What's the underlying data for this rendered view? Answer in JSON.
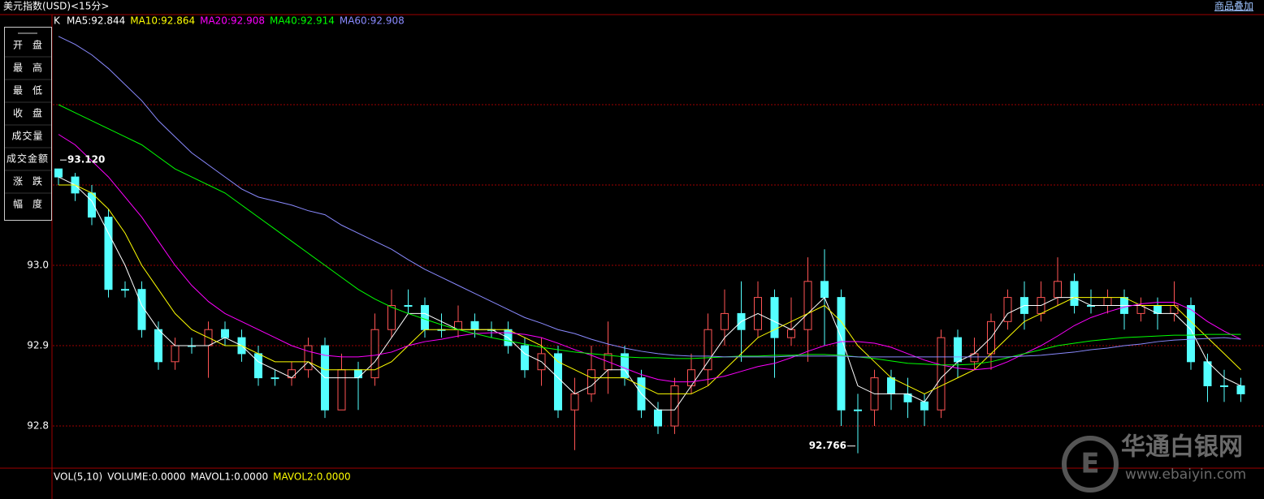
{
  "header": {
    "title": "美元指数(USD)<15分>",
    "overlay_button": "商品叠加"
  },
  "sidebar": [
    "开盘",
    "最高",
    "最低",
    "收盘",
    "成交量",
    "成交金额",
    "涨跌",
    "幅度"
  ],
  "chart_data": {
    "type": "candlestick",
    "label": "K",
    "open": [
      93.12,
      93.11,
      93.09,
      93.06,
      92.97,
      92.97,
      92.92,
      92.88,
      92.9,
      92.9,
      92.92,
      92.91,
      92.89,
      92.86,
      92.86,
      92.87,
      92.9,
      92.82,
      92.87,
      92.86,
      92.92,
      92.95,
      92.95,
      92.92,
      92.92,
      92.93,
      92.92,
      92.92,
      92.9,
      92.87,
      92.89,
      92.82,
      92.84,
      92.87,
      92.89,
      92.86,
      92.82,
      92.8,
      92.85,
      92.87,
      92.92,
      92.94,
      92.92,
      92.96,
      92.91,
      92.92,
      92.98,
      92.96,
      92.82,
      92.82,
      92.86,
      92.84,
      92.83,
      92.82,
      92.91,
      92.88,
      92.89,
      92.93,
      92.96,
      92.94,
      92.96,
      92.98,
      92.95,
      92.95,
      92.96,
      92.94,
      92.95,
      92.94,
      92.95,
      92.88,
      92.85,
      92.85
    ],
    "high": [
      93.12,
      93.115,
      93.1,
      93.07,
      92.98,
      92.98,
      92.93,
      92.91,
      92.91,
      92.93,
      92.93,
      92.92,
      92.9,
      92.87,
      92.88,
      92.91,
      92.91,
      92.89,
      92.88,
      92.94,
      92.97,
      92.97,
      92.96,
      92.94,
      92.95,
      92.94,
      92.93,
      92.93,
      92.91,
      92.91,
      92.9,
      92.86,
      92.9,
      92.93,
      92.9,
      92.87,
      92.83,
      92.86,
      92.89,
      92.94,
      92.97,
      92.98,
      92.98,
      92.97,
      92.96,
      93.01,
      93.02,
      92.97,
      92.84,
      92.87,
      92.87,
      92.86,
      92.84,
      92.92,
      92.92,
      92.91,
      92.94,
      92.97,
      92.98,
      92.98,
      93.01,
      92.99,
      92.97,
      92.97,
      92.97,
      92.96,
      92.96,
      92.98,
      92.96,
      92.89,
      92.87,
      92.86
    ],
    "low": [
      93.1,
      93.08,
      93.05,
      92.96,
      92.96,
      92.91,
      92.87,
      92.87,
      92.89,
      92.86,
      92.9,
      92.88,
      92.85,
      92.85,
      92.85,
      92.86,
      92.81,
      92.82,
      92.82,
      92.85,
      92.91,
      92.94,
      92.91,
      92.91,
      92.91,
      92.91,
      92.91,
      92.89,
      92.86,
      92.85,
      92.81,
      92.77,
      92.83,
      92.84,
      92.85,
      92.81,
      92.79,
      92.79,
      92.84,
      92.85,
      92.9,
      92.88,
      92.91,
      92.86,
      92.9,
      92.88,
      92.9,
      92.8,
      92.766,
      92.8,
      92.82,
      92.81,
      92.8,
      92.81,
      92.86,
      92.87,
      92.87,
      92.92,
      92.92,
      92.93,
      92.95,
      92.94,
      92.94,
      92.94,
      92.92,
      92.93,
      92.92,
      92.93,
      92.87,
      92.83,
      92.83,
      92.83
    ],
    "close": [
      93.11,
      93.09,
      93.06,
      92.97,
      92.97,
      92.92,
      92.88,
      92.9,
      92.9,
      92.92,
      92.91,
      92.89,
      92.86,
      92.86,
      92.87,
      92.9,
      92.82,
      92.87,
      92.86,
      92.92,
      92.95,
      92.95,
      92.92,
      92.92,
      92.93,
      92.92,
      92.92,
      92.9,
      92.87,
      92.89,
      92.82,
      92.84,
      92.87,
      92.89,
      92.86,
      92.82,
      92.8,
      92.85,
      92.87,
      92.92,
      92.94,
      92.92,
      92.96,
      92.91,
      92.92,
      92.98,
      92.96,
      92.82,
      92.82,
      92.86,
      92.84,
      92.83,
      92.82,
      92.91,
      92.88,
      92.89,
      92.93,
      92.96,
      92.94,
      92.96,
      92.98,
      92.95,
      92.95,
      92.96,
      92.94,
      92.95,
      92.94,
      92.95,
      92.88,
      92.85,
      92.85,
      92.84
    ],
    "up_color": "#ff5454",
    "down_color": "#54ffff",
    "ma_lines": [
      {
        "label": "MA5:92.844",
        "color": "#ffffff",
        "values": [
          93.11,
          93.1,
          93.08,
          93.04,
          93.0,
          92.95,
          92.92,
          92.9,
          92.9,
          92.9,
          92.91,
          92.9,
          92.88,
          92.87,
          92.86,
          92.88,
          92.86,
          92.86,
          92.86,
          92.88,
          92.91,
          92.94,
          92.94,
          92.93,
          92.92,
          92.92,
          92.92,
          92.91,
          92.89,
          92.88,
          92.86,
          92.84,
          92.85,
          92.87,
          92.87,
          92.84,
          92.82,
          92.82,
          92.85,
          92.88,
          92.91,
          92.93,
          92.94,
          92.93,
          92.92,
          92.94,
          92.96,
          92.91,
          92.85,
          92.84,
          92.84,
          92.84,
          92.83,
          92.86,
          92.88,
          92.89,
          92.91,
          92.94,
          92.95,
          92.95,
          92.96,
          92.96,
          92.95,
          92.95,
          92.95,
          92.95,
          92.94,
          92.94,
          92.92,
          92.88,
          92.86,
          92.85
        ]
      },
      {
        "label": "MA10:92.864",
        "color": "#ffff00",
        "values": [
          93.1,
          93.1,
          93.09,
          93.07,
          93.04,
          93.0,
          92.97,
          92.94,
          92.92,
          92.91,
          92.9,
          92.9,
          92.89,
          92.88,
          92.88,
          92.88,
          92.87,
          92.87,
          92.87,
          92.87,
          92.88,
          92.9,
          92.92,
          92.92,
          92.92,
          92.92,
          92.92,
          92.92,
          92.91,
          92.9,
          92.88,
          92.87,
          92.86,
          92.86,
          92.86,
          92.85,
          92.84,
          92.84,
          92.84,
          92.85,
          92.87,
          92.89,
          92.91,
          92.92,
          92.93,
          92.94,
          92.95,
          92.93,
          92.9,
          92.88,
          92.86,
          92.85,
          92.84,
          92.85,
          92.86,
          92.87,
          92.89,
          92.91,
          92.93,
          92.94,
          92.95,
          92.96,
          92.96,
          92.96,
          92.96,
          92.95,
          92.95,
          92.95,
          92.93,
          92.91,
          92.89,
          92.87
        ]
      },
      {
        "label": "MA20:92.908",
        "color": "#ff00ff",
        "values": [
          93.163,
          93.15,
          93.13,
          93.11,
          93.085,
          93.06,
          93.03,
          93.0,
          92.975,
          92.955,
          92.94,
          92.93,
          92.92,
          92.91,
          92.9,
          92.893,
          92.888,
          92.886,
          92.886,
          92.888,
          92.892,
          92.9,
          92.905,
          92.908,
          92.912,
          92.915,
          92.916,
          92.916,
          92.914,
          92.91,
          92.903,
          92.895,
          92.888,
          92.88,
          92.872,
          92.864,
          92.858,
          92.855,
          92.855,
          92.858,
          92.862,
          92.868,
          92.874,
          92.878,
          92.885,
          92.893,
          92.9,
          92.905,
          92.905,
          92.903,
          92.898,
          92.89,
          92.882,
          92.876,
          92.872,
          92.87,
          92.872,
          92.88,
          92.89,
          92.9,
          92.912,
          92.925,
          92.935,
          92.942,
          92.948,
          92.952,
          92.954,
          92.954,
          92.945,
          92.93,
          92.918,
          92.908
        ]
      },
      {
        "label": "MA40:92.914",
        "color": "#00ff00",
        "values": [
          93.2,
          93.19,
          93.18,
          93.17,
          93.16,
          93.15,
          93.135,
          93.12,
          93.11,
          93.1,
          93.09,
          93.075,
          93.06,
          93.045,
          93.03,
          93.015,
          93.0,
          92.985,
          92.97,
          92.958,
          92.948,
          92.94,
          92.933,
          92.926,
          92.92,
          92.915,
          92.91,
          92.906,
          92.902,
          92.898,
          92.895,
          92.892,
          92.89,
          92.888,
          92.886,
          92.885,
          92.885,
          92.884,
          92.884,
          92.885,
          92.886,
          92.887,
          92.887,
          92.888,
          92.888,
          92.889,
          92.889,
          92.888,
          92.886,
          92.884,
          92.881,
          92.878,
          92.877,
          92.876,
          92.876,
          92.877,
          92.88,
          92.885,
          92.89,
          92.895,
          92.9,
          92.903,
          92.906,
          92.908,
          92.91,
          92.911,
          92.912,
          92.913,
          92.913,
          92.914,
          92.914,
          92.914
        ]
      },
      {
        "label": "MA60:92.908",
        "color": "#8a8aff",
        "values": [
          93.285,
          93.275,
          93.262,
          93.245,
          93.225,
          93.205,
          93.18,
          93.16,
          93.14,
          93.125,
          93.11,
          93.095,
          93.085,
          93.08,
          93.075,
          93.068,
          93.063,
          93.05,
          93.04,
          93.03,
          93.02,
          93.007,
          92.995,
          92.985,
          92.975,
          92.965,
          92.955,
          92.945,
          92.935,
          92.928,
          92.92,
          92.915,
          92.908,
          92.902,
          92.897,
          92.893,
          92.89,
          92.888,
          92.887,
          92.887,
          92.886,
          92.886,
          92.886,
          92.886,
          92.887,
          92.887,
          92.887,
          92.887,
          92.886,
          92.886,
          92.886,
          92.886,
          92.886,
          92.886,
          92.886,
          92.886,
          92.886,
          92.886,
          92.887,
          92.888,
          92.89,
          92.892,
          92.895,
          92.897,
          92.9,
          92.902,
          92.905,
          92.907,
          92.908,
          92.909,
          92.91,
          92.908
        ]
      }
    ],
    "extremes": {
      "high": {
        "label": "93.120"
      },
      "low": {
        "label": "92.766"
      }
    },
    "ylim": [
      92.7475,
      93.3121
    ],
    "yticks": [
      92.8,
      92.9,
      {
        "value": 93,
        "label": "93.0"
      },
      {
        "value": 93.1,
        "label": null
      },
      {
        "value": 93.2,
        "label": null
      }
    ],
    "grid": true
  },
  "volume_panel": {
    "labels": [
      {
        "text": "VOL(5,10)",
        "color": "#ffffff"
      },
      {
        "text": "VOLUME:0.0000",
        "color": "#ffffff"
      },
      {
        "text": "MAVOL1:0.0000",
        "color": "#ffffff"
      },
      {
        "text": "MAVOL2:0.0000",
        "color": "#ffff00"
      }
    ]
  },
  "watermark": {
    "name": "华通白银网",
    "url": "www.ebaiyin.com"
  }
}
